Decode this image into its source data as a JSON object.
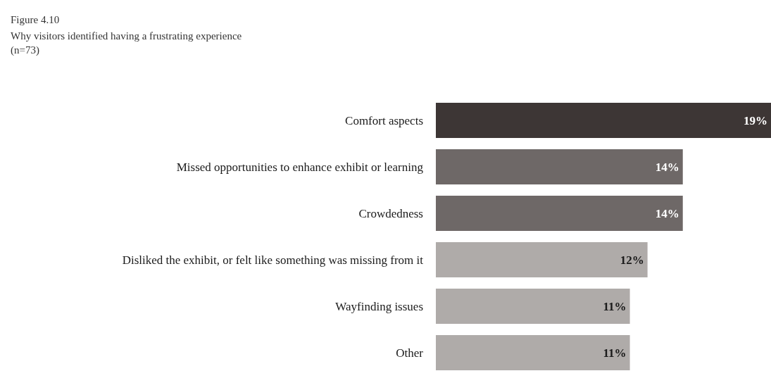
{
  "chart_data": {
    "type": "bar",
    "orientation": "horizontal",
    "title": "Figure 4.10",
    "subtitle": "Why visitors identified having a frustrating experience",
    "annotations": [
      "(n=73)"
    ],
    "categories": [
      "Comfort aspects",
      "Missed opportunities to enhance exhibit or learning",
      "Crowdedness",
      "Disliked the exhibit, or felt like something was missing from it",
      "Wayfinding issues",
      "Other"
    ],
    "values": [
      19,
      14,
      14,
      12,
      11,
      11
    ],
    "colors": [
      "#3d3635",
      "#6e6867",
      "#6e6867",
      "#afaba9",
      "#afaba9",
      "#afaba9"
    ],
    "value_labels": [
      "19%",
      "14%",
      "14%",
      "12%",
      "11%",
      "11%"
    ],
    "xlim": [
      0,
      19
    ],
    "tick_labels": "y"
  }
}
